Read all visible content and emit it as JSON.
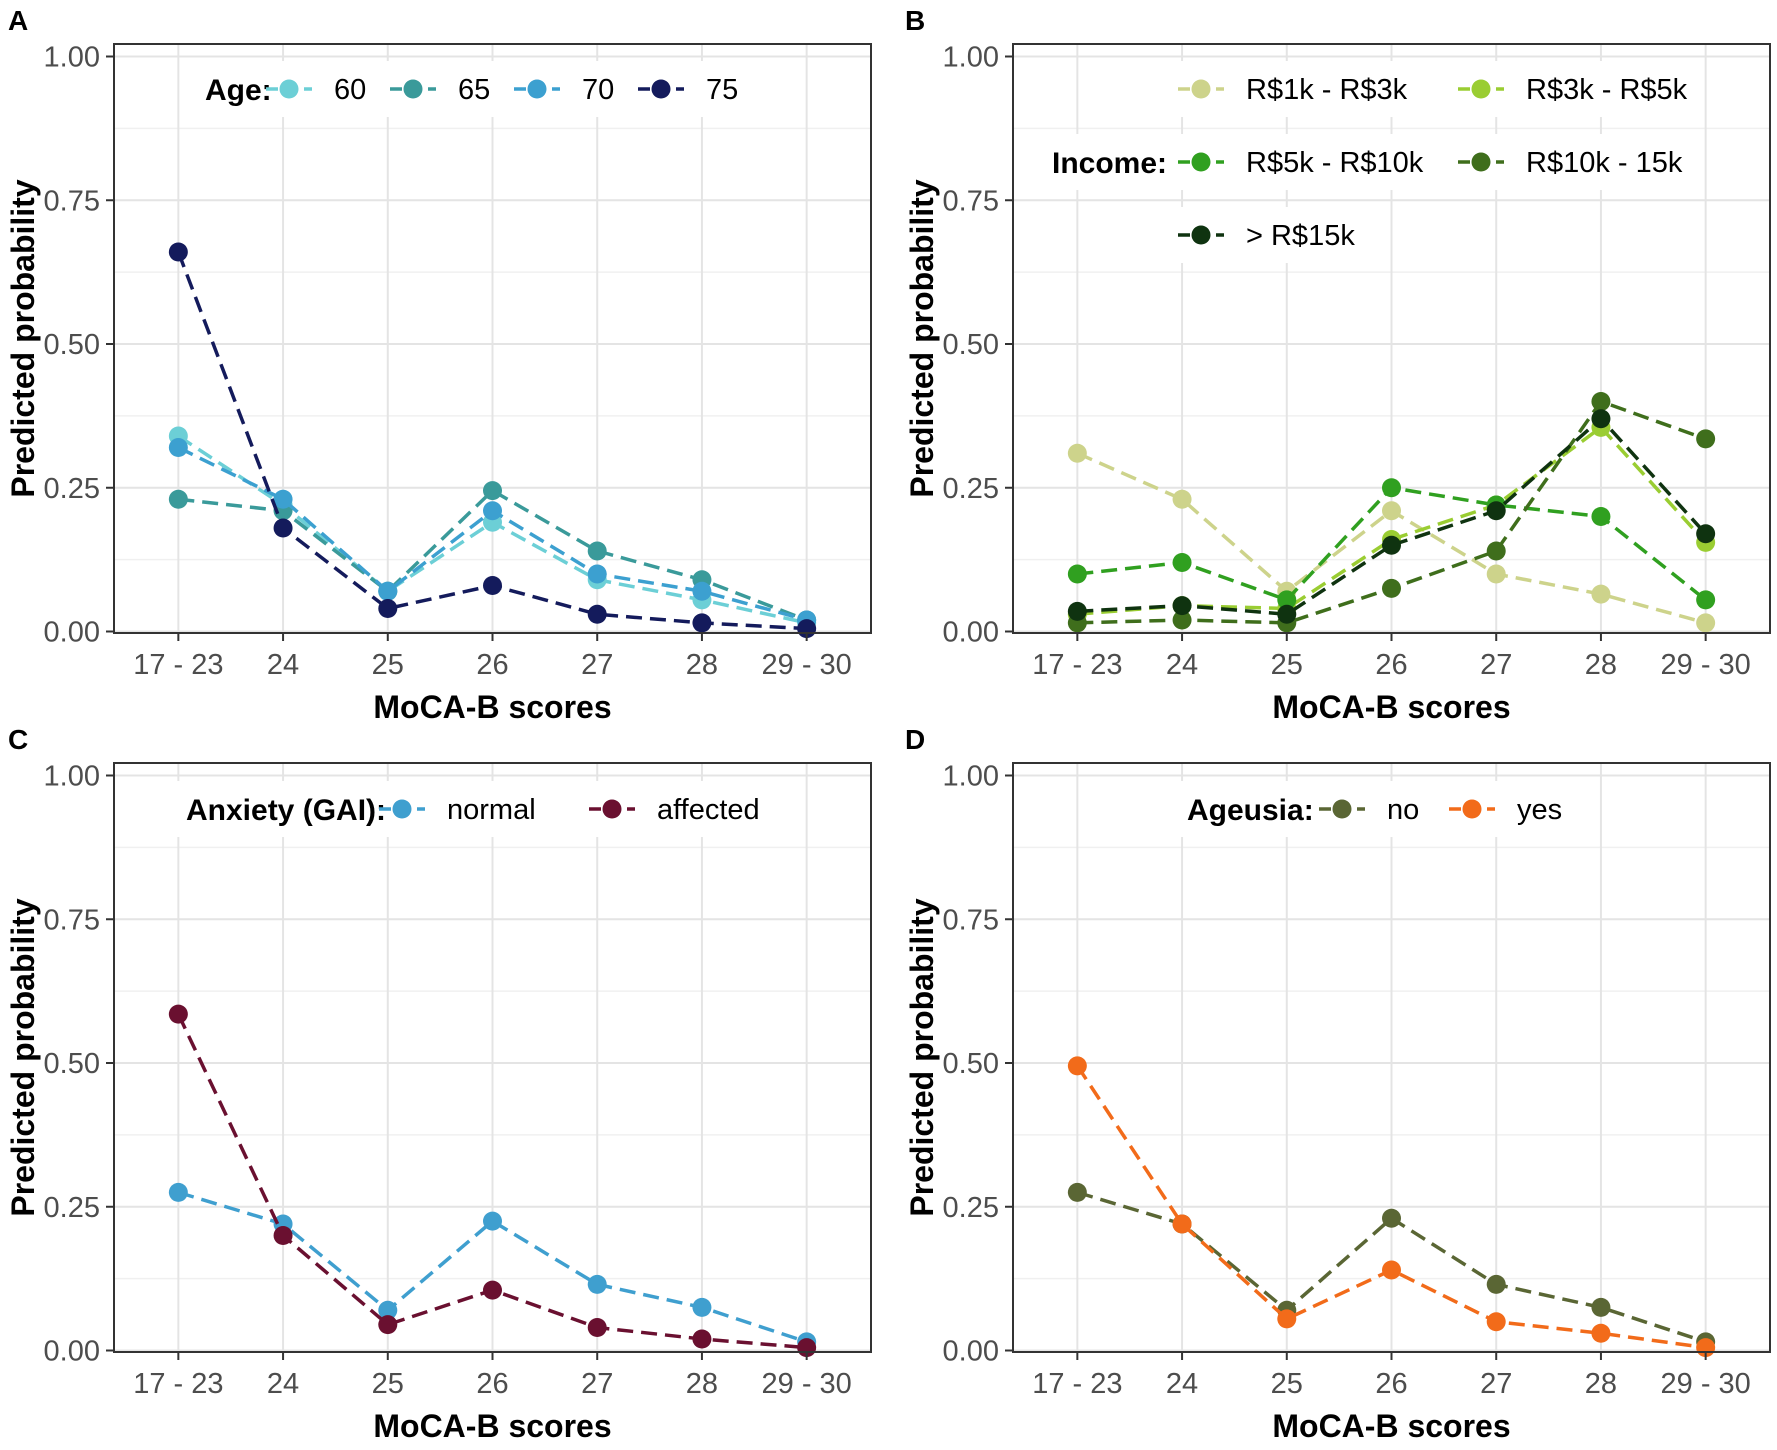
{
  "chart_data": [
    {
      "type": "line",
      "panel": "A",
      "xlabel": "MoCA-B scores",
      "ylabel": "Predicted probability",
      "categories": [
        "17 - 23",
        "24",
        "25",
        "26",
        "27",
        "28",
        "29 - 30"
      ],
      "yticks": [
        "0.00",
        "0.25",
        "0.50",
        "0.75",
        "1.00"
      ],
      "ylim": [
        0,
        1
      ],
      "grid": true,
      "legend_title": "Age:",
      "legend_position": "top",
      "series": [
        {
          "name": "60",
          "color": "#6CCFD6",
          "values": [
            0.34,
            0.22,
            0.07,
            0.19,
            0.09,
            0.055,
            0.015
          ]
        },
        {
          "name": "65",
          "color": "#3A9A9A",
          "values": [
            0.23,
            0.21,
            0.07,
            0.245,
            0.14,
            0.09,
            0.02
          ]
        },
        {
          "name": "70",
          "color": "#3CA0D0",
          "values": [
            0.32,
            0.23,
            0.07,
            0.21,
            0.1,
            0.07,
            0.02
          ]
        },
        {
          "name": "75",
          "color": "#141B5C",
          "values": [
            0.66,
            0.18,
            0.04,
            0.08,
            0.03,
            0.015,
            0.005
          ]
        }
      ]
    },
    {
      "type": "line",
      "panel": "B",
      "xlabel": "MoCA-B scores",
      "ylabel": "Predicted probability",
      "categories": [
        "17 - 23",
        "24",
        "25",
        "26",
        "27",
        "28",
        "29 - 30"
      ],
      "yticks": [
        "0.00",
        "0.25",
        "0.50",
        "0.75",
        "1.00"
      ],
      "ylim": [
        0,
        1
      ],
      "grid": true,
      "legend_title": "Income:",
      "legend_position": "top",
      "series": [
        {
          "name": "R$1k - R$3k",
          "color": "#CDD38B",
          "values": [
            0.31,
            0.23,
            0.07,
            0.21,
            0.1,
            0.065,
            0.015
          ]
        },
        {
          "name": "R$3k - R$5k",
          "color": "#9ACD32",
          "values": [
            0.03,
            0.045,
            0.04,
            0.16,
            0.22,
            0.355,
            0.155
          ]
        },
        {
          "name": "R$5k - R$10k",
          "color": "#30A020",
          "values": [
            0.1,
            0.12,
            0.055,
            0.25,
            0.22,
            0.2,
            0.055
          ]
        },
        {
          "name": "R$10k - 15k",
          "color": "#3F6E1C",
          "values": [
            0.015,
            0.02,
            0.015,
            0.075,
            0.14,
            0.4,
            0.335
          ]
        },
        {
          "name": "> R$15k",
          "color": "#0F3310",
          "values": [
            0.035,
            0.045,
            0.03,
            0.15,
            0.21,
            0.37,
            0.17
          ]
        }
      ]
    },
    {
      "type": "line",
      "panel": "C",
      "xlabel": "MoCA-B scores",
      "ylabel": "Predicted probability",
      "categories": [
        "17 - 23",
        "24",
        "25",
        "26",
        "27",
        "28",
        "29 - 30"
      ],
      "yticks": [
        "0.00",
        "0.25",
        "0.50",
        "0.75",
        "1.00"
      ],
      "ylim": [
        0,
        1
      ],
      "grid": true,
      "legend_title": "Anxiety (GAI):",
      "legend_position": "top",
      "series": [
        {
          "name": "normal",
          "color": "#3F9FCF",
          "values": [
            0.275,
            0.22,
            0.07,
            0.225,
            0.115,
            0.075,
            0.015
          ]
        },
        {
          "name": "affected",
          "color": "#6A1030",
          "values": [
            0.585,
            0.2,
            0.045,
            0.105,
            0.04,
            0.02,
            0.005
          ]
        }
      ]
    },
    {
      "type": "line",
      "panel": "D",
      "xlabel": "MoCA-B scores",
      "ylabel": "Predicted probability",
      "categories": [
        "17 - 23",
        "24",
        "25",
        "26",
        "27",
        "28",
        "29 - 30"
      ],
      "yticks": [
        "0.00",
        "0.25",
        "0.50",
        "0.75",
        "1.00"
      ],
      "ylim": [
        0,
        1
      ],
      "grid": true,
      "legend_title": "Ageusia:",
      "legend_position": "top",
      "series": [
        {
          "name": "no",
          "color": "#5A6634",
          "values": [
            0.275,
            0.22,
            0.07,
            0.23,
            0.115,
            0.075,
            0.015
          ]
        },
        {
          "name": "yes",
          "color": "#F26B1A",
          "values": [
            0.495,
            0.22,
            0.055,
            0.14,
            0.05,
            0.03,
            0.005
          ]
        }
      ]
    }
  ]
}
